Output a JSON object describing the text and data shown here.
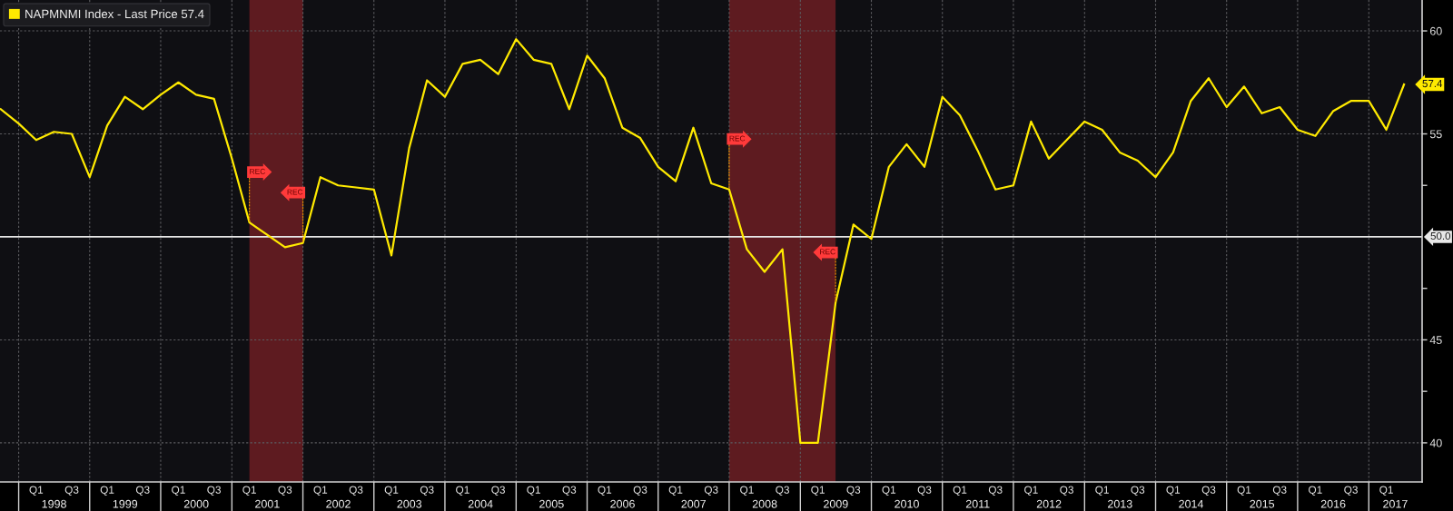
{
  "chart_data": {
    "type": "line",
    "x": [
      "1997-09-30",
      "1997-12-31",
      "1998-03-31",
      "1998-06-30",
      "1998-09-30",
      "1998-12-31",
      "1999-03-31",
      "1999-06-30",
      "1999-09-30",
      "1999-12-31",
      "2000-03-31",
      "2000-06-30",
      "2000-09-30",
      "2000-12-31",
      "2001-03-31",
      "2001-06-30",
      "2001-09-30",
      "2001-12-31",
      "2002-03-31",
      "2002-06-30",
      "2002-09-30",
      "2002-12-31",
      "2003-03-31",
      "2003-06-30",
      "2003-09-30",
      "2003-12-31",
      "2004-03-31",
      "2004-06-30",
      "2004-09-30",
      "2004-12-31",
      "2005-03-31",
      "2005-06-30",
      "2005-09-30",
      "2005-12-31",
      "2006-03-31",
      "2006-06-30",
      "2006-09-30",
      "2006-12-31",
      "2007-03-31",
      "2007-06-30",
      "2007-09-30",
      "2007-12-31",
      "2008-03-31",
      "2008-06-30",
      "2008-09-30",
      "2008-12-31",
      "2009-03-31",
      "2009-06-30",
      "2009-09-30",
      "2009-12-31",
      "2010-03-31",
      "2010-06-30",
      "2010-09-30",
      "2010-12-31",
      "2011-03-31",
      "2011-06-30",
      "2011-09-30",
      "2011-12-31",
      "2012-03-31",
      "2012-06-30",
      "2012-09-30",
      "2012-12-31",
      "2013-03-31",
      "2013-06-30",
      "2013-09-30",
      "2013-12-31",
      "2014-03-31",
      "2014-06-30",
      "2014-09-30",
      "2014-12-31",
      "2015-03-31",
      "2015-06-30",
      "2015-09-30",
      "2015-12-31",
      "2016-03-31",
      "2016-06-30",
      "2016-09-30",
      "2016-12-31",
      "2017-03-31",
      "2017-06-30"
    ],
    "series": [
      {
        "name": "NAPMNMI Index - Last Price 57.4",
        "color": "#ffea00",
        "values": [
          56.2,
          55.5,
          54.7,
          55.1,
          55.0,
          52.9,
          55.4,
          56.8,
          56.2,
          56.9,
          57.5,
          56.9,
          56.7,
          53.8,
          50.7,
          50.1,
          49.5,
          49.7,
          52.9,
          52.5,
          52.4,
          52.3,
          49.1,
          54.3,
          57.6,
          56.8,
          58.4,
          58.6,
          57.9,
          59.6,
          58.6,
          58.4,
          56.2,
          58.8,
          57.7,
          55.3,
          54.8,
          53.4,
          52.7,
          55.3,
          52.6,
          52.3,
          49.4,
          48.3,
          49.4,
          40.0,
          40.0,
          46.8,
          50.6,
          49.9,
          53.4,
          54.5,
          53.4,
          56.8,
          55.9,
          54.2,
          52.3,
          52.5,
          55.6,
          53.8,
          54.7,
          55.6,
          55.2,
          54.1,
          53.7,
          52.9,
          54.1,
          56.6,
          57.7,
          56.3,
          57.3,
          56.0,
          56.3,
          55.2,
          54.9,
          56.1,
          56.6,
          56.6,
          55.2,
          57.4
        ],
        "value_labels": [
          null,
          null,
          null,
          null,
          null,
          null,
          null,
          null,
          null,
          null,
          null,
          null,
          null,
          null,
          null,
          null,
          null,
          null,
          null,
          null,
          null,
          null,
          null,
          null,
          null,
          null,
          null,
          null,
          null,
          null,
          null,
          null,
          null,
          null,
          null,
          null,
          null,
          null,
          null,
          null,
          null,
          null,
          null,
          null,
          null,
          null,
          null,
          null,
          null,
          null,
          null,
          null,
          null,
          null,
          null,
          null,
          null,
          null,
          null,
          null,
          null,
          null,
          null,
          null,
          null,
          null,
          null,
          null,
          null,
          null,
          null,
          null,
          null,
          null,
          null,
          null,
          null,
          null,
          null,
          "57.4"
        ]
      }
    ],
    "xlim": [
      "1997-09-26",
      "2017-10-01"
    ],
    "xticks": [
      {
        "value": "1997-12-31",
        "label": null
      },
      {
        "value": "1998-03-31",
        "label": "Q1"
      },
      {
        "value": "1998-09-30",
        "label": "Q3"
      },
      {
        "value": "1998-12-31",
        "label": null
      },
      {
        "value": "1999-03-31",
        "label": "Q1"
      },
      {
        "value": "1999-09-30",
        "label": "Q3"
      },
      {
        "value": "1999-12-31",
        "label": null
      },
      {
        "value": "2000-03-31",
        "label": "Q1"
      },
      {
        "value": "2000-09-30",
        "label": "Q3"
      },
      {
        "value": "2000-12-31",
        "label": null
      },
      {
        "value": "2001-03-31",
        "label": "Q1"
      },
      {
        "value": "2001-09-30",
        "label": "Q3"
      },
      {
        "value": "2001-12-31",
        "label": null
      },
      {
        "value": "2002-03-31",
        "label": "Q1"
      },
      {
        "value": "2002-09-30",
        "label": "Q3"
      },
      {
        "value": "2002-12-31",
        "label": null
      },
      {
        "value": "2003-03-31",
        "label": "Q1"
      },
      {
        "value": "2003-09-30",
        "label": "Q3"
      },
      {
        "value": "2003-12-31",
        "label": null
      },
      {
        "value": "2004-03-31",
        "label": "Q1"
      },
      {
        "value": "2004-09-30",
        "label": "Q3"
      },
      {
        "value": "2004-12-31",
        "label": null
      },
      {
        "value": "2005-03-31",
        "label": "Q1"
      },
      {
        "value": "2005-09-30",
        "label": "Q3"
      },
      {
        "value": "2005-12-31",
        "label": null
      },
      {
        "value": "2006-03-31",
        "label": "Q1"
      },
      {
        "value": "2006-09-30",
        "label": "Q3"
      },
      {
        "value": "2006-12-31",
        "label": null
      },
      {
        "value": "2007-03-31",
        "label": "Q1"
      },
      {
        "value": "2007-09-30",
        "label": "Q3"
      },
      {
        "value": "2007-12-31",
        "label": null
      },
      {
        "value": "2008-03-31",
        "label": "Q1"
      },
      {
        "value": "2008-09-30",
        "label": "Q3"
      },
      {
        "value": "2008-12-31",
        "label": null
      },
      {
        "value": "2009-03-31",
        "label": "Q1"
      },
      {
        "value": "2009-09-30",
        "label": "Q3"
      },
      {
        "value": "2009-12-31",
        "label": null
      },
      {
        "value": "2010-03-31",
        "label": "Q1"
      },
      {
        "value": "2010-09-30",
        "label": "Q3"
      },
      {
        "value": "2010-12-31",
        "label": null
      },
      {
        "value": "2011-03-31",
        "label": "Q1"
      },
      {
        "value": "2011-09-30",
        "label": "Q3"
      },
      {
        "value": "2011-12-31",
        "label": null
      },
      {
        "value": "2012-03-31",
        "label": "Q1"
      },
      {
        "value": "2012-09-30",
        "label": "Q3"
      },
      {
        "value": "2012-12-31",
        "label": null
      },
      {
        "value": "2013-03-31",
        "label": "Q1"
      },
      {
        "value": "2013-09-30",
        "label": "Q3"
      },
      {
        "value": "2013-12-31",
        "label": null
      },
      {
        "value": "2014-03-31",
        "label": "Q1"
      },
      {
        "value": "2014-09-30",
        "label": "Q3"
      },
      {
        "value": "2014-12-31",
        "label": null
      },
      {
        "value": "2015-03-31",
        "label": "Q1"
      },
      {
        "value": "2015-09-30",
        "label": "Q3"
      },
      {
        "value": "2015-12-31",
        "label": null
      },
      {
        "value": "2016-03-31",
        "label": "Q1"
      },
      {
        "value": "2016-09-30",
        "label": "Q3"
      },
      {
        "value": "2016-12-31",
        "label": null
      },
      {
        "value": "2017-03-31",
        "label": "Q1"
      }
    ],
    "x2lim": [
      "1997-09-26",
      "2017-10-01"
    ],
    "x2ticks": [
      {
        "value": "1998-07-01",
        "label": "1998"
      },
      {
        "value": "1999-07-01",
        "label": "1999"
      },
      {
        "value": "2000-07-01",
        "label": "2000"
      },
      {
        "value": "2001-07-01",
        "label": "2001"
      },
      {
        "value": "2002-07-01",
        "label": "2002"
      },
      {
        "value": "2003-07-01",
        "label": "2003"
      },
      {
        "value": "2004-07-01",
        "label": "2004"
      },
      {
        "value": "2005-07-01",
        "label": "2005"
      },
      {
        "value": "2006-07-01",
        "label": "2006"
      },
      {
        "value": "2007-07-01",
        "label": "2007"
      },
      {
        "value": "2008-07-01",
        "label": "2008"
      },
      {
        "value": "2009-07-01",
        "label": "2009"
      },
      {
        "value": "2010-07-01",
        "label": "2010"
      },
      {
        "value": "2011-07-01",
        "label": "2011"
      },
      {
        "value": "2012-07-01",
        "label": "2012"
      },
      {
        "value": "2013-07-01",
        "label": "2013"
      },
      {
        "value": "2014-07-01",
        "label": "2014"
      },
      {
        "value": "2015-07-01",
        "label": "2015"
      },
      {
        "value": "2016-07-01",
        "label": "2016"
      },
      {
        "value": "2017-05-16",
        "label": "2017"
      }
    ],
    "ylim": [
      38.1,
      61.5
    ],
    "yticks": [
      40,
      {
        "value": 42.5,
        "label": null
      },
      45,
      {
        "value": 47.5,
        "label": null
      },
      {
        "value": 52.5,
        "label": null
      },
      55,
      60
    ],
    "ref_lines": [
      {
        "axis": "y",
        "value": 50,
        "label": "50.0",
        "color": "#e8e8e8"
      }
    ],
    "bands": [
      {
        "axis": "x",
        "from": "2001-03-31",
        "to": "2001-12-31",
        "color": "#5e1b20"
      },
      {
        "axis": "x",
        "from": "2007-12-31",
        "to": "2009-06-30",
        "color": "#5e1b20"
      }
    ],
    "annotations": [
      {
        "text": "REC",
        "x": "2001-03-31",
        "y": 50.7
      },
      {
        "text": "REC",
        "x": "2001-12-31",
        "y": 49.7
      },
      {
        "text": "REC",
        "x": "2007-12-31",
        "y": 52.3
      },
      {
        "text": "REC",
        "x": "2009-06-30",
        "y": 46.8
      }
    ],
    "grid": true,
    "legend": "top left",
    "marker": "none",
    "line_style": "solid"
  }
}
